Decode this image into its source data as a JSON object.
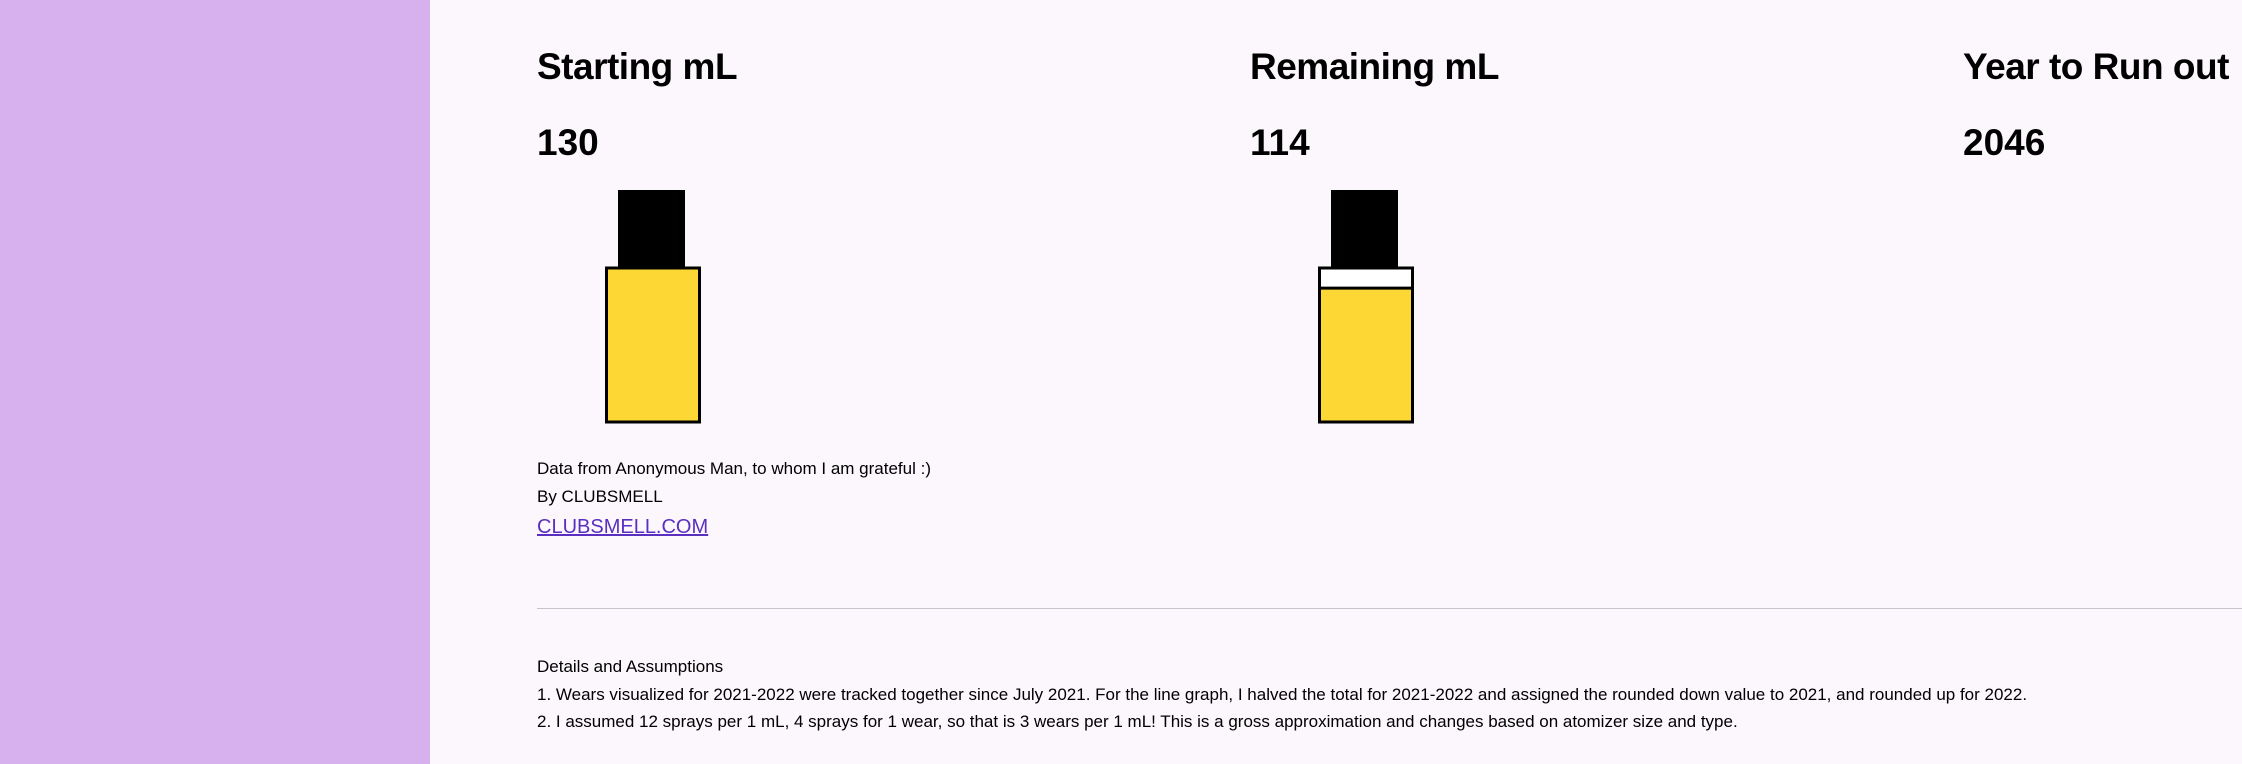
{
  "metrics": {
    "starting": {
      "label": "Starting mL",
      "value": "130"
    },
    "remaining": {
      "label": "Remaining mL",
      "value": "114"
    },
    "run_out": {
      "label": "Year to Run out",
      "value": "2046"
    }
  },
  "bottles": {
    "starting_fill_fraction": 1.0,
    "remaining_fill_fraction": 0.877
  },
  "credits": {
    "data_source": "Data from Anonymous Man, to whom I am grateful :)",
    "author": "By CLUBSMELL",
    "link": "CLUBSMELL.COM"
  },
  "details": {
    "heading": "Details and Assumptions",
    "note1": "1. Wears visualized for 2021-2022 were tracked together since July 2021. For the line graph, I halved the total for 2021-2022 and assigned the rounded down value to 2021, and rounded up for 2022.",
    "note2": "2. I assumed 12 sprays per 1 mL, 4 sprays for 1 wear, so that is 3 wears per 1 mL! This is a gross approximation and changes based on atomizer size and type."
  },
  "colors": {
    "sidebar": "#d7b0ee",
    "background": "#fcf6fd",
    "perfume_fill": "#fdd835",
    "bottle_cap": "#000000",
    "link": "#5a2fc0"
  }
}
